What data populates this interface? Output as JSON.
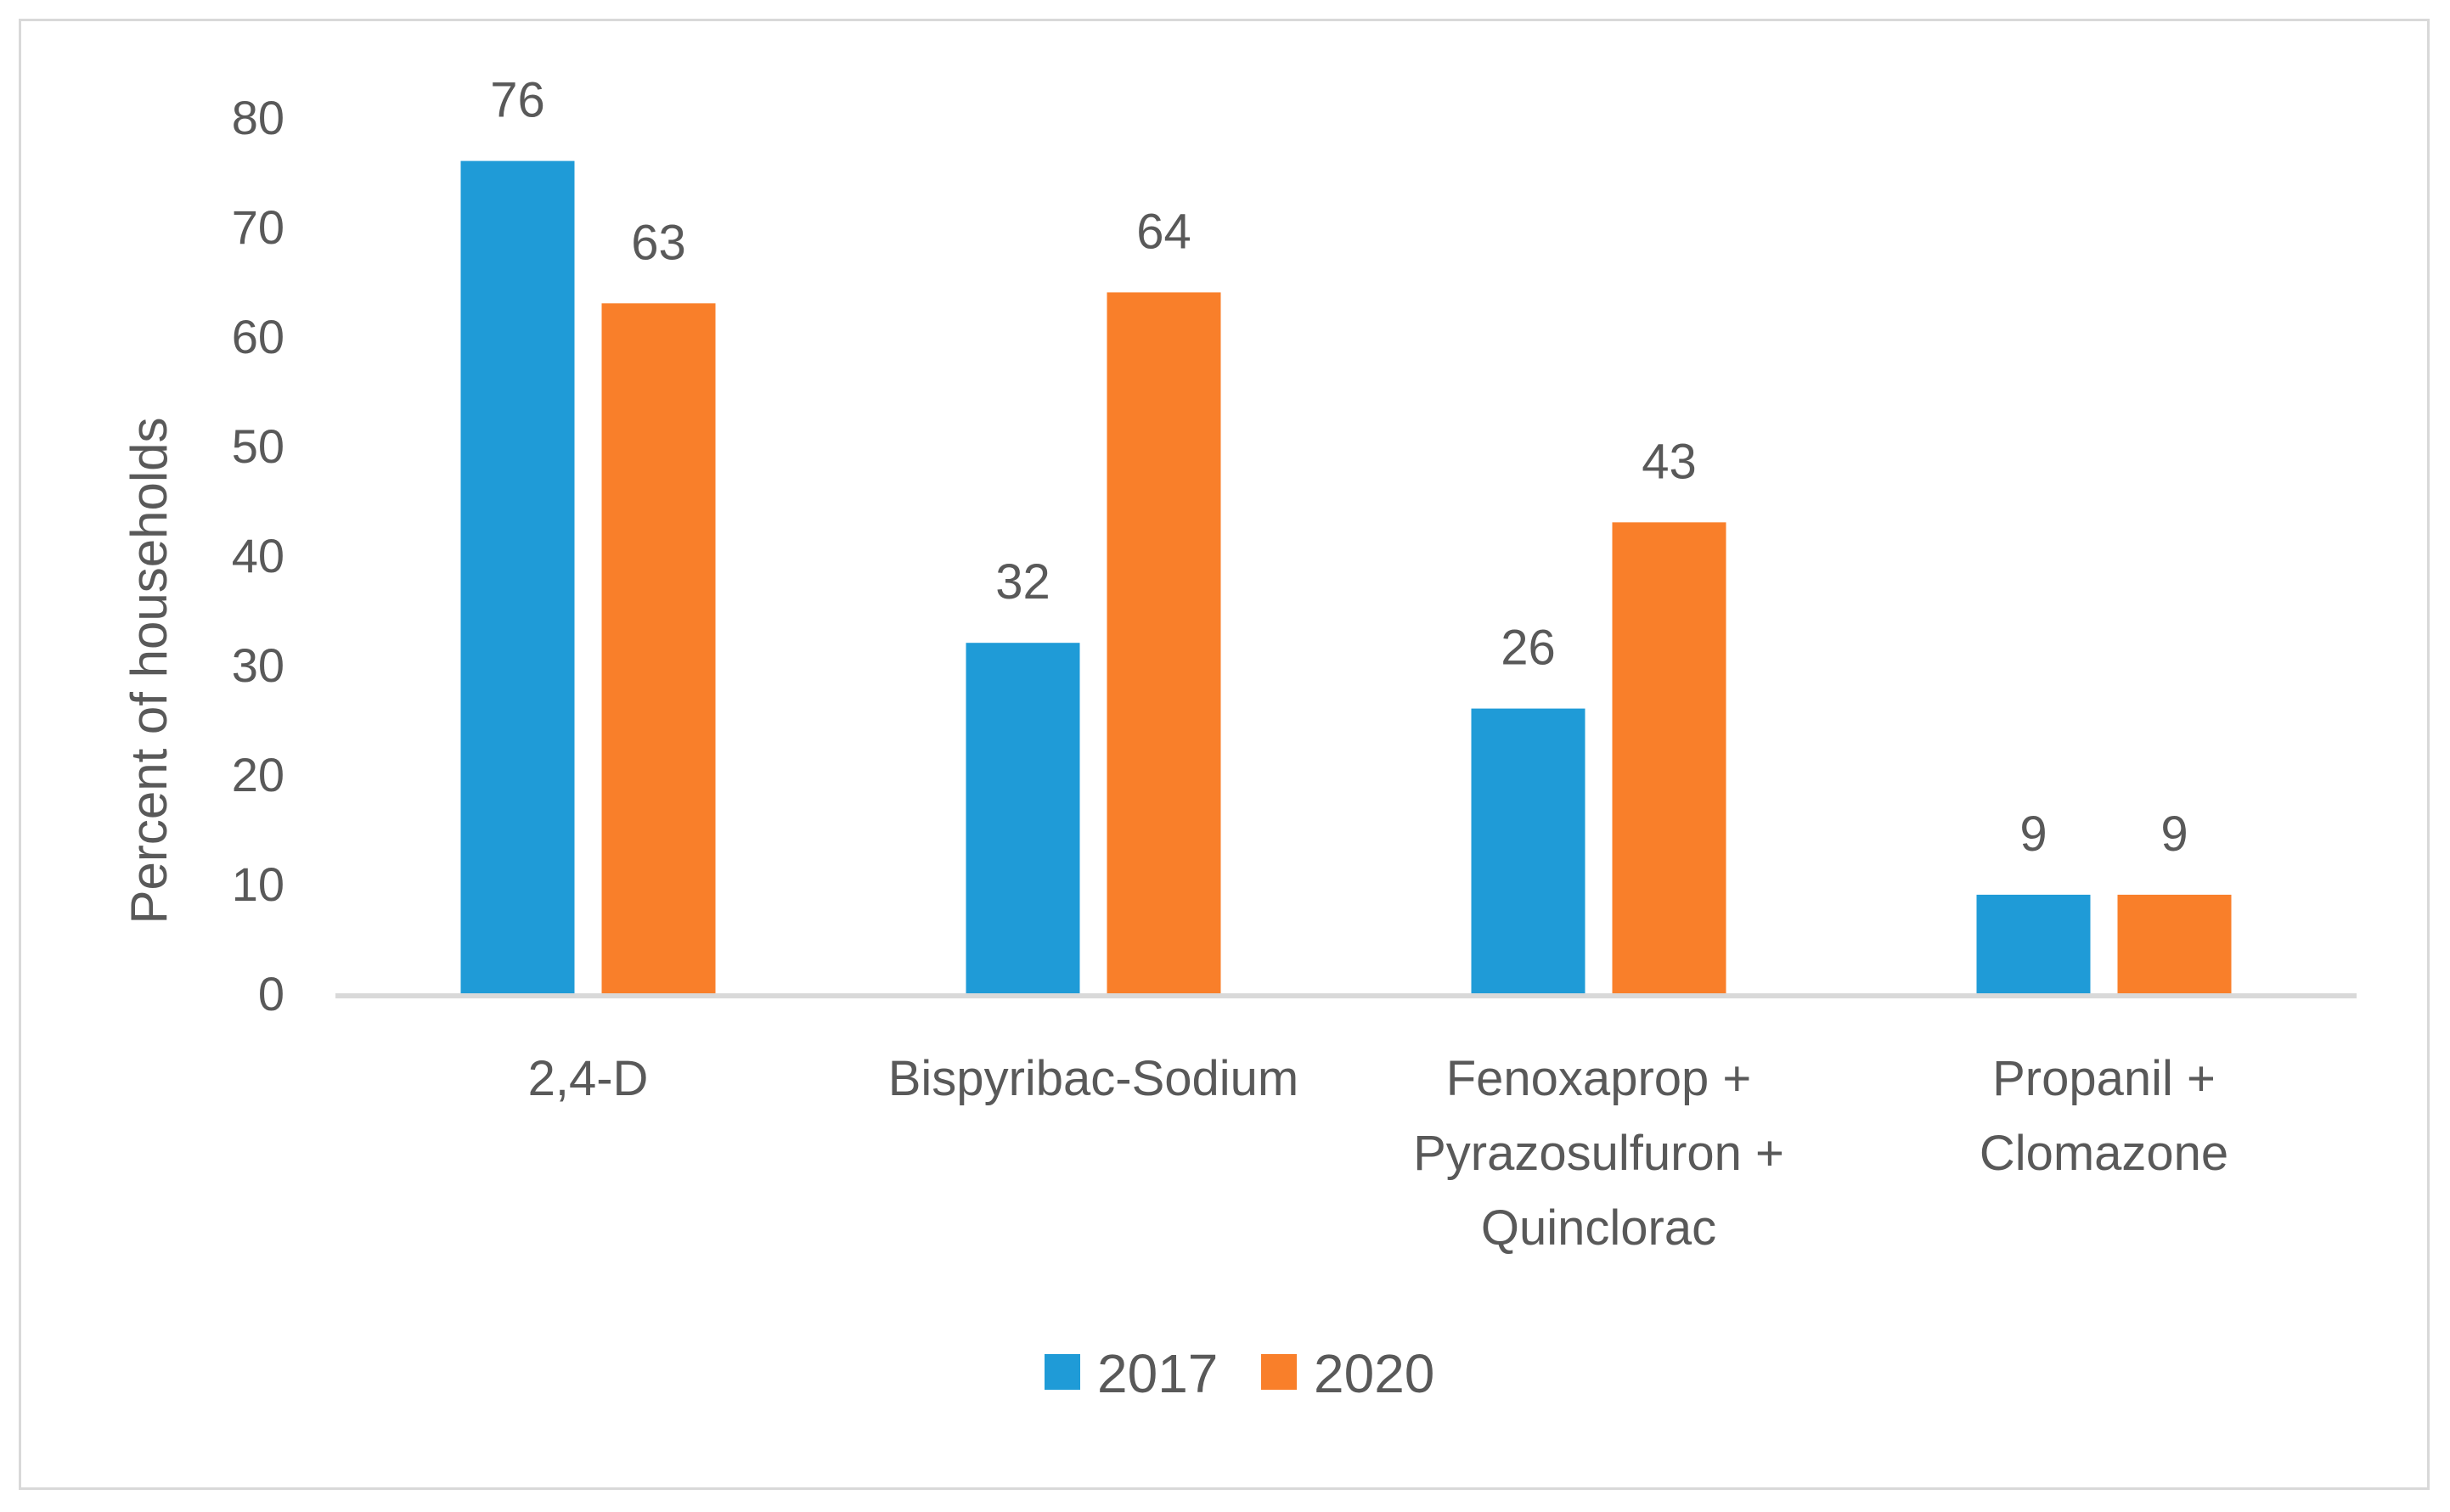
{
  "chart_data": {
    "type": "bar",
    "title": "",
    "xlabel": "",
    "ylabel": "Percent  of households",
    "ylim": [
      0,
      80
    ],
    "yticks": [
      0,
      10,
      20,
      30,
      40,
      50,
      60,
      70,
      80
    ],
    "grid": false,
    "legend_position": "bottom",
    "categories": [
      [
        "2,4-D"
      ],
      [
        "Bispyribac-Sodium"
      ],
      [
        "Fenoxaprop +",
        "Pyrazosulfuron +",
        "Quinclorac"
      ],
      [
        "Propanil +",
        "Clomazone"
      ]
    ],
    "series": [
      {
        "name": "2017",
        "color": "#1f9bd7",
        "values": [
          76,
          32,
          26,
          9
        ]
      },
      {
        "name": "2020",
        "color": "#f97f2a",
        "values": [
          63,
          64,
          43,
          9
        ]
      }
    ],
    "axis_color": "#d9d9d9"
  }
}
